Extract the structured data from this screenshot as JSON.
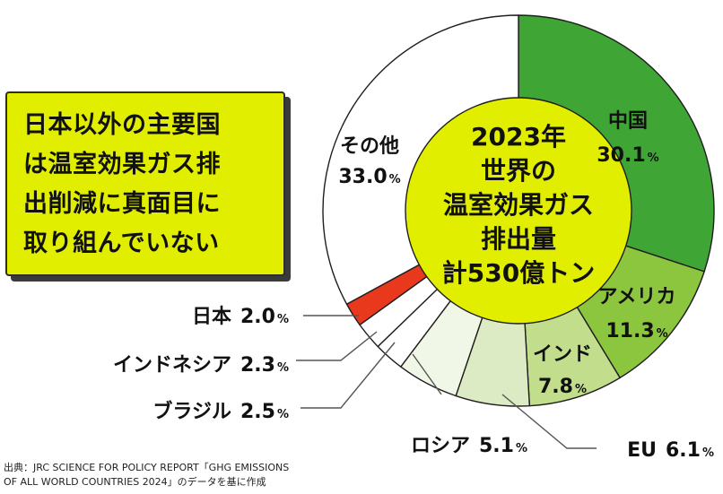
{
  "callout": {
    "lines": [
      "日本以外の主要国",
      "は温室効果ガス排",
      "出削減に真面目に",
      "取り組んでいない"
    ]
  },
  "chart_data": {
    "type": "pie",
    "variant": "donut",
    "center_label": [
      "2023年",
      "世界の",
      "温室効果ガス",
      "排出量",
      "計530億トン"
    ],
    "unit": "%",
    "slices": [
      {
        "name": "中国",
        "value": 30.1,
        "color": "#3fa535"
      },
      {
        "name": "アメリカ",
        "value": 11.3,
        "color": "#8cc63f"
      },
      {
        "name": "インド",
        "value": 7.8,
        "color": "#c2de8c"
      },
      {
        "name": "EU",
        "value": 6.1,
        "color": "#dcebc4"
      },
      {
        "name": "ロシア",
        "value": 5.1,
        "color": "#f1f7e7"
      },
      {
        "name": "ブラジル",
        "value": 2.5,
        "color": "#ffffff"
      },
      {
        "name": "インドネシア",
        "value": 2.3,
        "color": "#ffffff"
      },
      {
        "name": "日本",
        "value": 2.0,
        "color": "#e8391d"
      },
      {
        "name": "その他",
        "value": 33.0,
        "color": "#ffffff"
      }
    ],
    "labels": [
      {
        "slice": "中国",
        "name": "中国",
        "value": "30.1",
        "pct": "%"
      },
      {
        "slice": "アメリカ",
        "name": "アメリカ",
        "value": "11.3",
        "pct": "%"
      },
      {
        "slice": "インド",
        "name": "インド",
        "value": "7.8",
        "pct": "%"
      },
      {
        "slice": "その他",
        "name": "その他",
        "value": "33.0",
        "pct": "%"
      },
      {
        "slice": "日本",
        "name": "日本",
        "value": "2.0",
        "pct": "%"
      },
      {
        "slice": "インドネシア",
        "name": "インドネシア",
        "value": "2.3",
        "pct": "%"
      },
      {
        "slice": "ブラジル",
        "name": "ブラジル",
        "value": "2.5",
        "pct": "%"
      },
      {
        "slice": "ロシア",
        "name": "ロシア",
        "value": "5.1",
        "pct": "%"
      },
      {
        "slice": "EU",
        "name": "EU",
        "value": "6.1",
        "pct": "%"
      }
    ],
    "colors": {
      "center_fill": "#e2ee00",
      "stroke": "#1e1e1e"
    }
  },
  "source": {
    "line1": "出典：JRC SCIENCE FOR POLICY REPORT「GHG EMISSIONS",
    "line2": "OF ALL WORLD COUNTRIES 2024」のデータを基に作成"
  }
}
